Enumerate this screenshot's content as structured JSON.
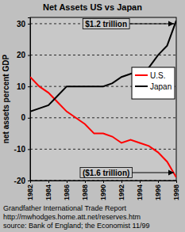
{
  "chart_data": {
    "type": "line",
    "title": "Net Assets US vs Japan",
    "y_label": "net assets percent GDP",
    "x": [
      1982,
      1983,
      1984,
      1985,
      1986,
      1987,
      1988,
      1989,
      1990,
      1991,
      1992,
      1993,
      1994,
      1995,
      1996,
      1997,
      1998
    ],
    "series": [
      {
        "name": "U.S.",
        "color": "#ff0000",
        "values": [
          13,
          10,
          8,
          5,
          2,
          0,
          -2,
          -5,
          -5,
          -6,
          -8,
          -7,
          -8,
          -9,
          -11,
          -14,
          -19
        ]
      },
      {
        "name": "Japan",
        "color": "#000000",
        "values": [
          2,
          3,
          4,
          7,
          10,
          10,
          10,
          10,
          10,
          11,
          13,
          14,
          15,
          16,
          20,
          23,
          31
        ]
      }
    ],
    "xlim": [
      1982,
      1998
    ],
    "xticks": [
      1982,
      1984,
      1986,
      1988,
      1990,
      1992,
      1994,
      1996,
      1998
    ],
    "ylim": [
      -20,
      32
    ],
    "yticks": [
      -20,
      -10,
      0,
      10,
      20,
      30
    ],
    "grid": true,
    "legend": "right",
    "annotations": [
      "$1.2 trillion",
      "($1.6 trillion)"
    ],
    "footer": [
      "Grandfather International Trade Report",
      "http://mwhodges.home.att.net/reserves.htm",
      "source: Bank of England; the Economist 11/99"
    ]
  }
}
